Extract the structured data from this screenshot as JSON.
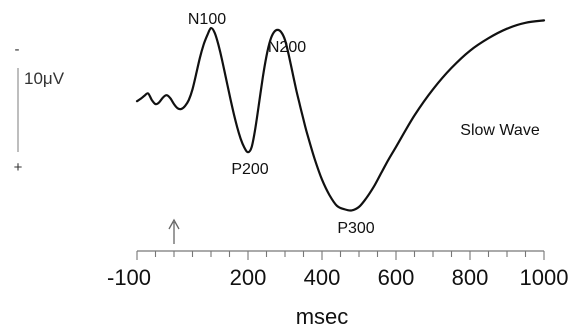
{
  "chart_data": {
    "type": "line",
    "xlabel": "msec",
    "ylabel": "",
    "xlim": [
      -100,
      1000
    ],
    "ylim": [
      -15,
      18
    ],
    "y_direction": "negative-up",
    "x_ticks": [
      -100,
      200,
      400,
      600,
      800,
      1000
    ],
    "x_tick_labels": [
      "-100",
      "200",
      "400",
      "600",
      "800",
      "1000"
    ],
    "minor_tick_step": 50,
    "stimulus_onset_ms": 0,
    "grid": false,
    "legend": "none",
    "scale_bar": {
      "label": "10μV",
      "microvolts": 10,
      "negative_sign": "-",
      "positive_sign": "+"
    },
    "series": [
      {
        "color": "#111111",
        "x": [
          -100,
          -90,
          -80,
          -70,
          -60,
          -50,
          -40,
          -30,
          -20,
          -10,
          0,
          10,
          20,
          30,
          40,
          50,
          60,
          70,
          80,
          90,
          100,
          110,
          120,
          130,
          140,
          150,
          160,
          170,
          180,
          190,
          200,
          210,
          220,
          230,
          240,
          250,
          260,
          270,
          280,
          290,
          300,
          310,
          320,
          330,
          340,
          350,
          360,
          380,
          400,
          420,
          440,
          460,
          480,
          500,
          520,
          540,
          560,
          580,
          600,
          650,
          700,
          750,
          800,
          850,
          900,
          950,
          1000
        ],
        "y": [
          -1.0,
          -1.4,
          -1.9,
          -2.3,
          -1.2,
          -0.5,
          -0.8,
          -1.6,
          -2.0,
          -1.5,
          -0.5,
          0.2,
          0.3,
          -0.2,
          -1.2,
          -3.0,
          -5.6,
          -8.3,
          -10.5,
          -12.1,
          -13.3,
          -12.5,
          -10.5,
          -7.9,
          -5.0,
          -2.1,
          0.7,
          3.2,
          5.3,
          6.8,
          7.6,
          6.7,
          3.5,
          -0.7,
          -5.0,
          -8.6,
          -11.2,
          -12.6,
          -13.0,
          -12.6,
          -11.3,
          -8.8,
          -5.9,
          -3.0,
          -0.4,
          2.1,
          4.5,
          8.7,
          12.2,
          14.8,
          16.6,
          17.2,
          17.4,
          16.8,
          15.3,
          13.4,
          11.1,
          8.8,
          6.7,
          1.4,
          -3.0,
          -6.6,
          -9.5,
          -11.6,
          -13.2,
          -14.2,
          -14.6
        ]
      }
    ],
    "annotations": [
      {
        "text": "N100",
        "x": 100,
        "y": -13.3
      },
      {
        "text": "N200",
        "x": 290,
        "y": -13.0
      },
      {
        "text": "P200",
        "x": 210,
        "y": 7.6
      },
      {
        "text": "P300",
        "x": 480,
        "y": 17.4
      },
      {
        "text": "Slow Wave",
        "x": 820,
        "y": 0
      }
    ]
  }
}
